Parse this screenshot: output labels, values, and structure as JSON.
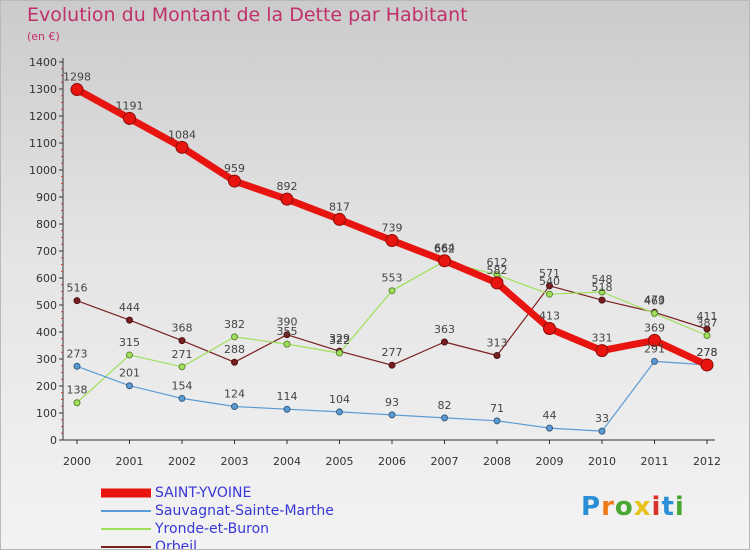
{
  "header": {
    "title": "Evolution du Montant de la Dette par Habitant",
    "unit": "(en €)"
  },
  "chart_data": {
    "type": "line",
    "title": "Evolution du Montant de la Dette par Habitant",
    "subtitle": "(en €)",
    "xlabel": "",
    "ylabel": "",
    "x": [
      "2000",
      "2001",
      "2002",
      "2003",
      "2004",
      "2005",
      "2006",
      "2007",
      "2008",
      "2009",
      "2010",
      "2011",
      "2012"
    ],
    "ylim": [
      0,
      1400
    ],
    "yticks": [
      0,
      100,
      200,
      300,
      400,
      500,
      600,
      700,
      800,
      900,
      1000,
      1100,
      1200,
      1300,
      1400
    ],
    "grid": false,
    "legend": "bottom-left",
    "series": [
      {
        "name": "SAINT-YVOINE",
        "color": "#e8140f",
        "values": [
          1298,
          1191,
          1084,
          959,
          892,
          817,
          739,
          664,
          582,
          413,
          331,
          369,
          278
        ]
      },
      {
        "name": "Sauvagnat-Sainte-Marthe",
        "color": "#5b9bd5",
        "values": [
          273,
          201,
          154,
          124,
          114,
          104,
          93,
          82,
          71,
          44,
          33,
          291,
          278
        ]
      },
      {
        "name": "Yronde-et-Buron",
        "color": "#9ee05a",
        "values": [
          138,
          315,
          271,
          382,
          355,
          322,
          553,
          662,
          612,
          540,
          548,
          469,
          387
        ]
      },
      {
        "name": "Orbeil",
        "color": "#7a1f1f",
        "values": [
          516,
          444,
          368,
          288,
          390,
          329,
          277,
          363,
          313,
          571,
          518,
          473,
          411
        ]
      }
    ]
  },
  "brand": {
    "letters": [
      {
        "char": "P",
        "color": "#2b8fd6"
      },
      {
        "char": "r",
        "color": "#f07a1a"
      },
      {
        "char": "o",
        "color": "#4aa832"
      },
      {
        "char": "x",
        "color": "#e8c21a"
      },
      {
        "char": "i",
        "color": "#d8322a"
      },
      {
        "char": "t",
        "color": "#2b8fd6"
      },
      {
        "char": "i",
        "color": "#4aa832"
      }
    ]
  }
}
